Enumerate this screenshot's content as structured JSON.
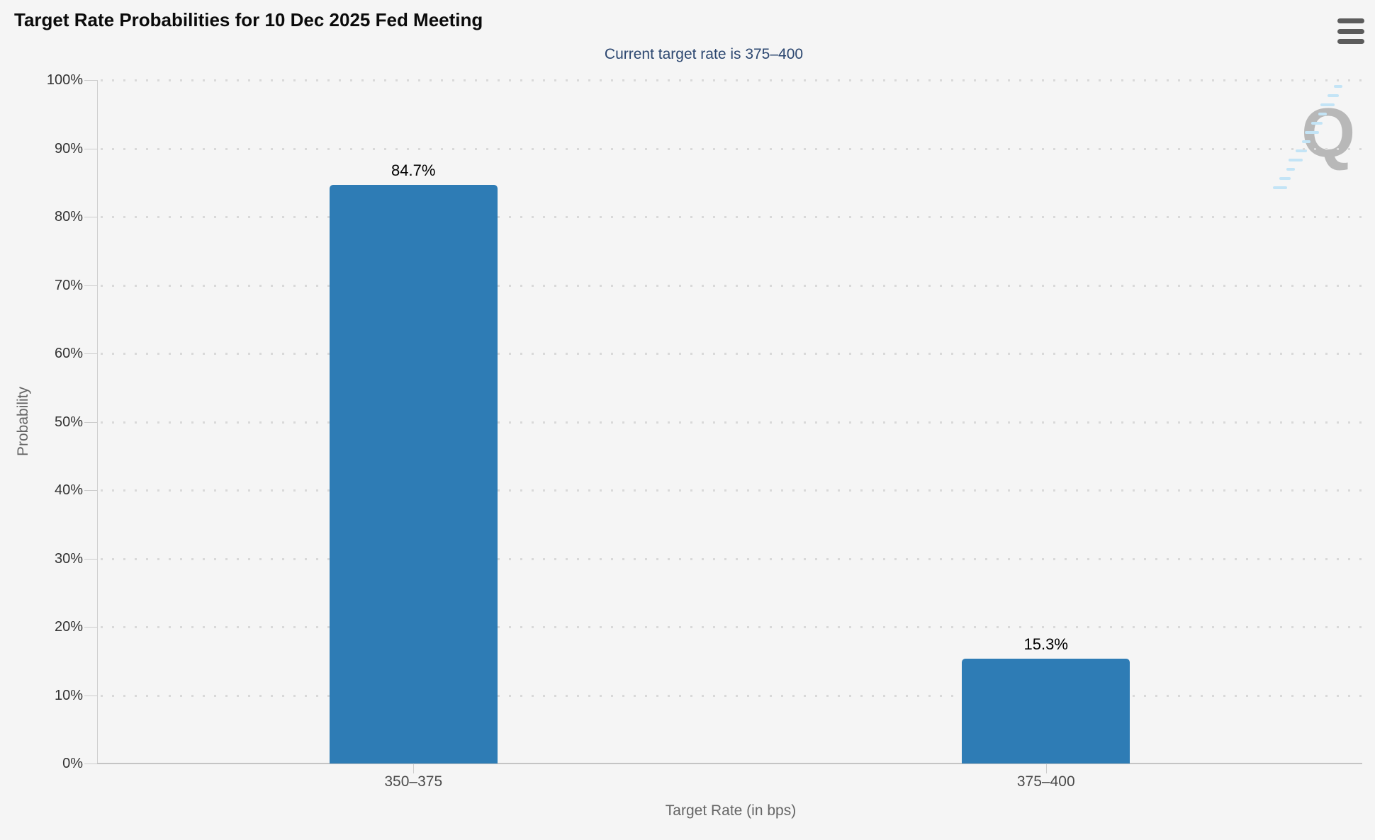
{
  "header": {
    "menu_tooltip": "Chart context menu"
  },
  "watermark": {
    "letter": "Q"
  },
  "chart_data": {
    "type": "bar",
    "title": "Target Rate Probabilities for 10 Dec 2025 Fed Meeting",
    "subtitle": "Current target rate is 375–400",
    "categories": [
      "350–375",
      "375–400"
    ],
    "values": [
      84.7,
      15.3
    ],
    "value_labels": [
      "84.7%",
      "15.3%"
    ],
    "xlabel": "Target Rate (in bps)",
    "ylabel": "Probability",
    "ylim": [
      0,
      100
    ],
    "yticks": [
      "0%",
      "10%",
      "20%",
      "30%",
      "40%",
      "50%",
      "60%",
      "70%",
      "80%",
      "90%",
      "100%"
    ],
    "grid": "dotted horizontal gridlines every 10%",
    "legend": "none",
    "bar_color": "#2e7cb5",
    "subtitle_color": "#2c4770",
    "axis_line_color": "#cfcfcf",
    "tick_label_color": "#333333"
  }
}
